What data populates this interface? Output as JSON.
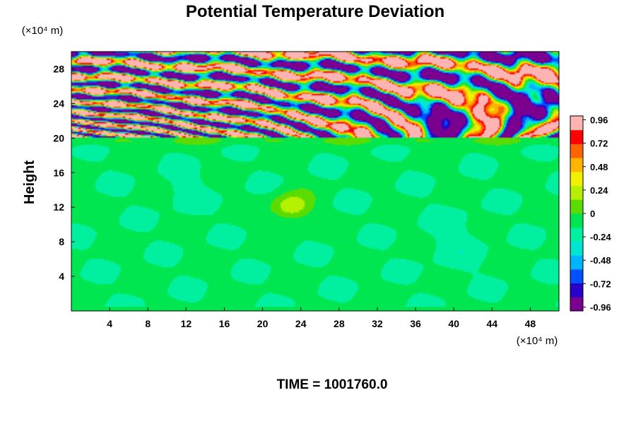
{
  "chart_data": {
    "type": "heatmap",
    "title": "Potential Temperature Deviation",
    "ylabel": "Height",
    "xlabel": "",
    "y_unit": "(×10⁴ m)",
    "x_unit": "(×10⁴ m)",
    "xlim": [
      0,
      51
    ],
    "ylim": [
      0,
      30
    ],
    "x_ticks": [
      4,
      8,
      12,
      16,
      20,
      24,
      28,
      32,
      36,
      40,
      44,
      48
    ],
    "y_ticks": [
      4,
      8,
      12,
      16,
      20,
      24,
      28
    ],
    "colorbar": {
      "ticks": [
        0.96,
        0.72,
        0.48,
        0.24,
        0,
        -0.24,
        -0.48,
        -0.72,
        -0.96
      ],
      "range": [
        -1.0,
        1.0
      ],
      "colors": [
        "#7a0090",
        "#2800c8",
        "#0050ff",
        "#00b4ff",
        "#00e6d2",
        "#00f0a0",
        "#00e650",
        "#5adc00",
        "#b4f000",
        "#f0f000",
        "#ffb400",
        "#ff6400",
        "#ff0000",
        "#ffb4b4"
      ]
    },
    "field": {
      "stratified_layer_base": 20,
      "lower_region_value_range": [
        -0.3,
        0.3
      ],
      "upper_region_value_range": [
        -1.0,
        1.0
      ],
      "warm_anomaly": {
        "x": 23,
        "y": 12,
        "value": 0.4
      }
    },
    "caption": "TIME = 1001760.0"
  }
}
